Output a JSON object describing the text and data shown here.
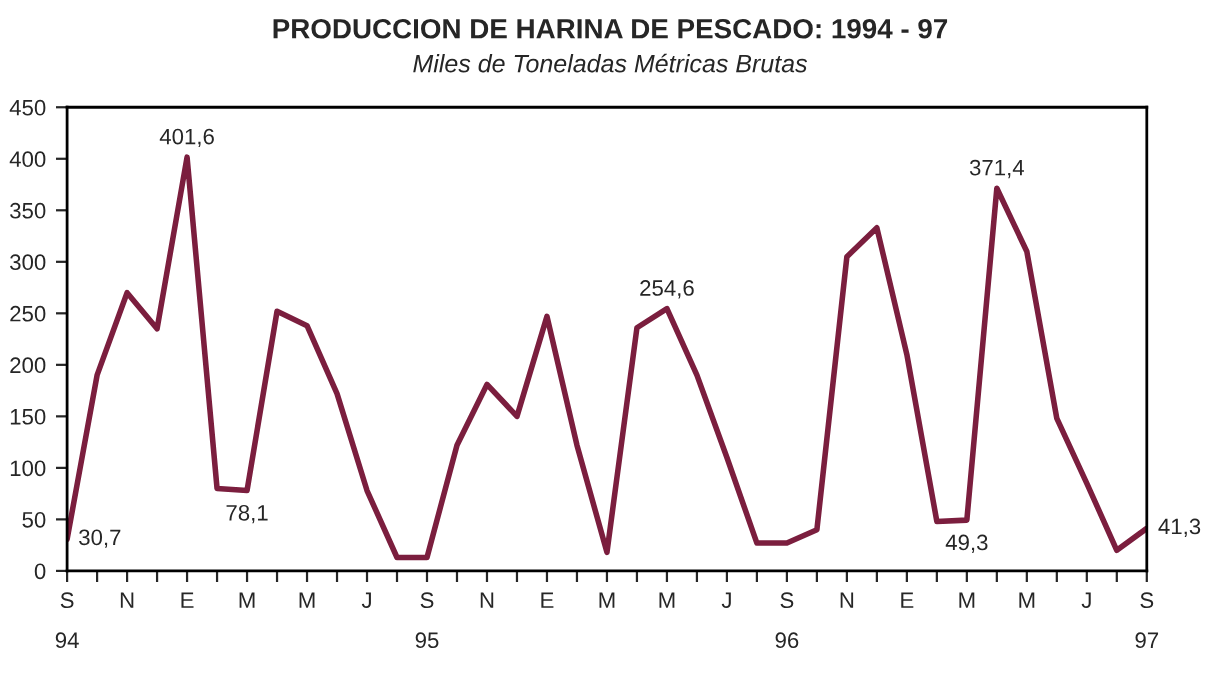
{
  "chart_data": {
    "type": "line",
    "title": "PRODUCCION DE HARINA DE PESCADO: 1994 - 97",
    "subtitle": "Miles de Toneladas Métricas Brutas",
    "categories": [
      "S\n94",
      null,
      "N",
      null,
      "E",
      null,
      "M",
      null,
      "M",
      null,
      "J",
      null,
      "S\n95",
      null,
      "N",
      null,
      "E",
      null,
      "M",
      null,
      "M",
      null,
      "J",
      null,
      "S\n96",
      null,
      "N",
      null,
      "E",
      null,
      "M",
      null,
      "M",
      null,
      "J",
      null,
      "S\n97"
    ],
    "series": [
      {
        "color": "#7b1e3e",
        "values": [
          30.7,
          190,
          270,
          235,
          401.6,
          80,
          78.1,
          252,
          238,
          172,
          78,
          13,
          13,
          122,
          181,
          150,
          247,
          122,
          18,
          236,
          254.6,
          190,
          110,
          27,
          27,
          40,
          305,
          333,
          210,
          48,
          49.3,
          371.4,
          310,
          148,
          85,
          20,
          41.3
        ],
        "value_labels": [
          "30,7",
          null,
          null,
          null,
          "401,6",
          null,
          "78,1",
          null,
          null,
          null,
          null,
          null,
          null,
          null,
          null,
          null,
          null,
          null,
          null,
          null,
          "254,6",
          null,
          null,
          null,
          null,
          null,
          null,
          null,
          null,
          null,
          "49,3",
          "371,4",
          null,
          null,
          null,
          null,
          "41,3"
        ]
      }
    ],
    "ylim": [
      0,
      450
    ],
    "yticks": [
      0,
      50,
      100,
      150,
      200,
      250,
      300,
      350,
      400,
      450
    ],
    "grid": false,
    "legend": false,
    "marker": "none",
    "line_style": "solid"
  }
}
